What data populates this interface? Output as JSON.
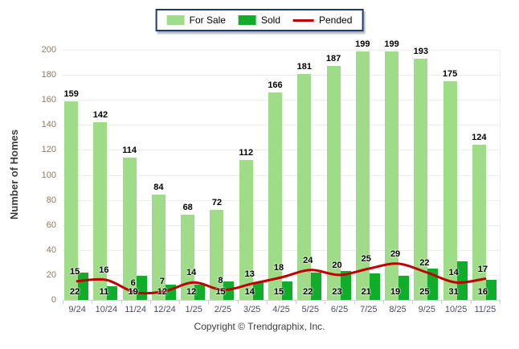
{
  "chart_data": {
    "type": "bar",
    "categories": [
      "9/24",
      "10/24",
      "11/24",
      "12/24",
      "1/25",
      "2/25",
      "3/25",
      "4/25",
      "5/25",
      "6/25",
      "7/25",
      "8/25",
      "9/25",
      "10/25",
      "11/25"
    ],
    "series": [
      {
        "name": "For Sale",
        "type": "bar",
        "color": "#9fdc87",
        "values": [
          159,
          142,
          114,
          84,
          68,
          72,
          112,
          166,
          181,
          187,
          199,
          199,
          193,
          175,
          124
        ]
      },
      {
        "name": "Sold",
        "type": "bar",
        "color": "#10ad2b",
        "values": [
          22,
          11,
          19,
          12,
          12,
          15,
          14,
          15,
          22,
          23,
          21,
          19,
          25,
          31,
          16
        ]
      },
      {
        "name": "Pended",
        "type": "line",
        "color": "#c00000",
        "values": [
          15,
          16,
          6,
          7,
          14,
          8,
          13,
          18,
          24,
          20,
          25,
          29,
          22,
          14,
          17
        ]
      }
    ],
    "ylabel": "Number of Homes",
    "xlabel": "",
    "ylim": [
      0,
      200
    ],
    "yticks": [
      0,
      20,
      40,
      60,
      80,
      100,
      120,
      140,
      160,
      180,
      200
    ],
    "grid": "horizontal",
    "legend_position": "top-center",
    "value_labels": true
  },
  "footer": {
    "copyright": "Copyright © Trendgraphix, Inc."
  },
  "colors": {
    "background": "#ffffff",
    "grid_line": "#ececec",
    "axis_line": "#d4d4d4",
    "y_tick_text": "#8a7a68",
    "x_tick_text": "#4a4f63",
    "value_label_text": "#000000",
    "legend_border": "#1c3c6e",
    "y_axis_title_text": "#3d3d3d",
    "copyright_text": "#3c3c3c"
  }
}
